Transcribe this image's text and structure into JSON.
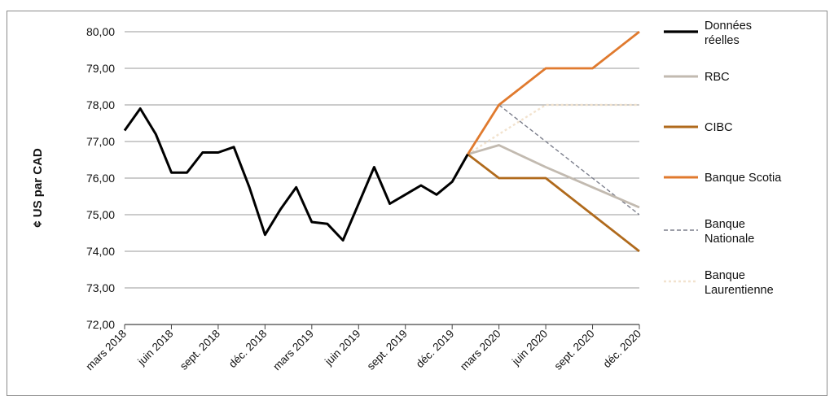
{
  "chart_data": {
    "type": "line",
    "ylabel": "¢ US par CAD",
    "xlabel": "",
    "ylim": [
      72,
      80
    ],
    "yticks": [
      "72,00",
      "73,00",
      "74,00",
      "75,00",
      "76,00",
      "77,00",
      "78,00",
      "79,00",
      "80,00"
    ],
    "xticks": [
      "mars 2018",
      "juin 2018",
      "sept. 2018",
      "déc. 2018",
      "mars 2019",
      "juin 2019",
      "sept. 2019",
      "déc. 2019",
      "mars 2020",
      "juin 2020",
      "sept. 2020",
      "déc. 2020"
    ],
    "grid": true,
    "legend_position": "right",
    "series": [
      {
        "name": "Données réelles",
        "legend_lines": [
          "Données",
          "réelles"
        ],
        "color": "#000000",
        "style": "solid",
        "x": [
          "2018-03",
          "2018-04",
          "2018-05",
          "2018-06",
          "2018-07",
          "2018-08",
          "2018-09",
          "2018-10",
          "2018-11",
          "2018-12",
          "2019-01",
          "2019-02",
          "2019-03",
          "2019-04",
          "2019-05",
          "2019-06",
          "2019-07",
          "2019-08",
          "2019-09",
          "2019-10",
          "2019-11",
          "2019-12",
          "2020-01"
        ],
        "values": [
          77.3,
          77.9,
          77.2,
          76.15,
          76.15,
          76.7,
          76.7,
          76.85,
          75.75,
          74.45,
          75.15,
          75.75,
          74.8,
          74.75,
          74.3,
          75.3,
          76.3,
          75.3,
          75.55,
          75.8,
          75.55,
          75.9,
          76.65
        ]
      },
      {
        "name": "RBC",
        "legend_lines": [
          "RBC"
        ],
        "color": "#c2bab0",
        "style": "solid",
        "x": [
          "2020-01",
          "2020-03",
          "2020-06",
          "2020-09",
          "2020-12"
        ],
        "values": [
          76.65,
          76.9,
          76.3,
          75.75,
          75.2
        ]
      },
      {
        "name": "CIBC",
        "legend_lines": [
          "CIBC"
        ],
        "color": "#b06a1c",
        "style": "solid",
        "x": [
          "2020-01",
          "2020-03",
          "2020-06",
          "2020-09",
          "2020-12"
        ],
        "values": [
          76.65,
          76.0,
          76.0,
          75.0,
          74.0
        ]
      },
      {
        "name": "Banque Scotia",
        "legend_lines": [
          "Banque Scotia"
        ],
        "color": "#e07a2e",
        "style": "solid",
        "x": [
          "2020-01",
          "2020-03",
          "2020-06",
          "2020-09",
          "2020-12"
        ],
        "values": [
          76.65,
          78.0,
          79.0,
          79.0,
          80.0
        ]
      },
      {
        "name": "Banque Nationale",
        "legend_lines": [
          "Banque",
          "Nationale"
        ],
        "color": "#7c7f8c",
        "style": "dashed",
        "x": [
          "2020-01",
          "2020-03",
          "2020-06",
          "2020-09",
          "2020-12"
        ],
        "values": [
          76.65,
          78.0,
          77.0,
          76.0,
          75.0
        ]
      },
      {
        "name": "Banque Laurentienne",
        "legend_lines": [
          "Banque",
          "Laurentienne"
        ],
        "color": "#f2e3cf",
        "style": "dotted",
        "x": [
          "2020-01",
          "2020-03",
          "2020-06",
          "2020-09",
          "2020-12"
        ],
        "values": [
          76.65,
          77.2,
          78.0,
          78.0,
          78.0
        ]
      }
    ]
  }
}
